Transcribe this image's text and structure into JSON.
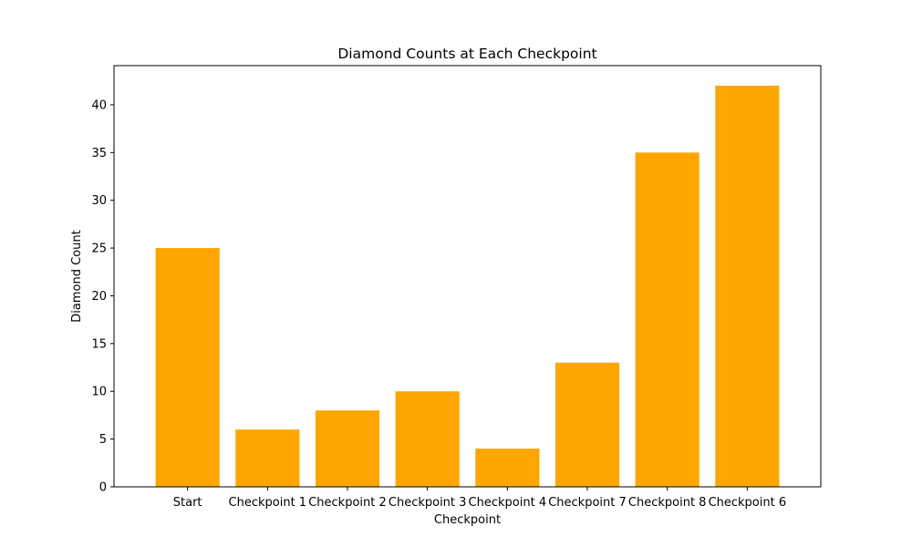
{
  "chart_data": {
    "type": "bar",
    "title": "Diamond Counts at Each Checkpoint",
    "xlabel": "Checkpoint",
    "ylabel": "Diamond Count",
    "categories": [
      "Start",
      "Checkpoint 1",
      "Checkpoint 2",
      "Checkpoint 3",
      "Checkpoint 4",
      "Checkpoint 7",
      "Checkpoint 8",
      "Checkpoint 6"
    ],
    "values": [
      25,
      6,
      8,
      10,
      4,
      13,
      35,
      42
    ],
    "ylim": [
      0,
      44.1
    ],
    "yticks": [
      0,
      5,
      10,
      15,
      20,
      25,
      30,
      35,
      40
    ],
    "grid": false,
    "bar_color": "#ffa500"
  }
}
